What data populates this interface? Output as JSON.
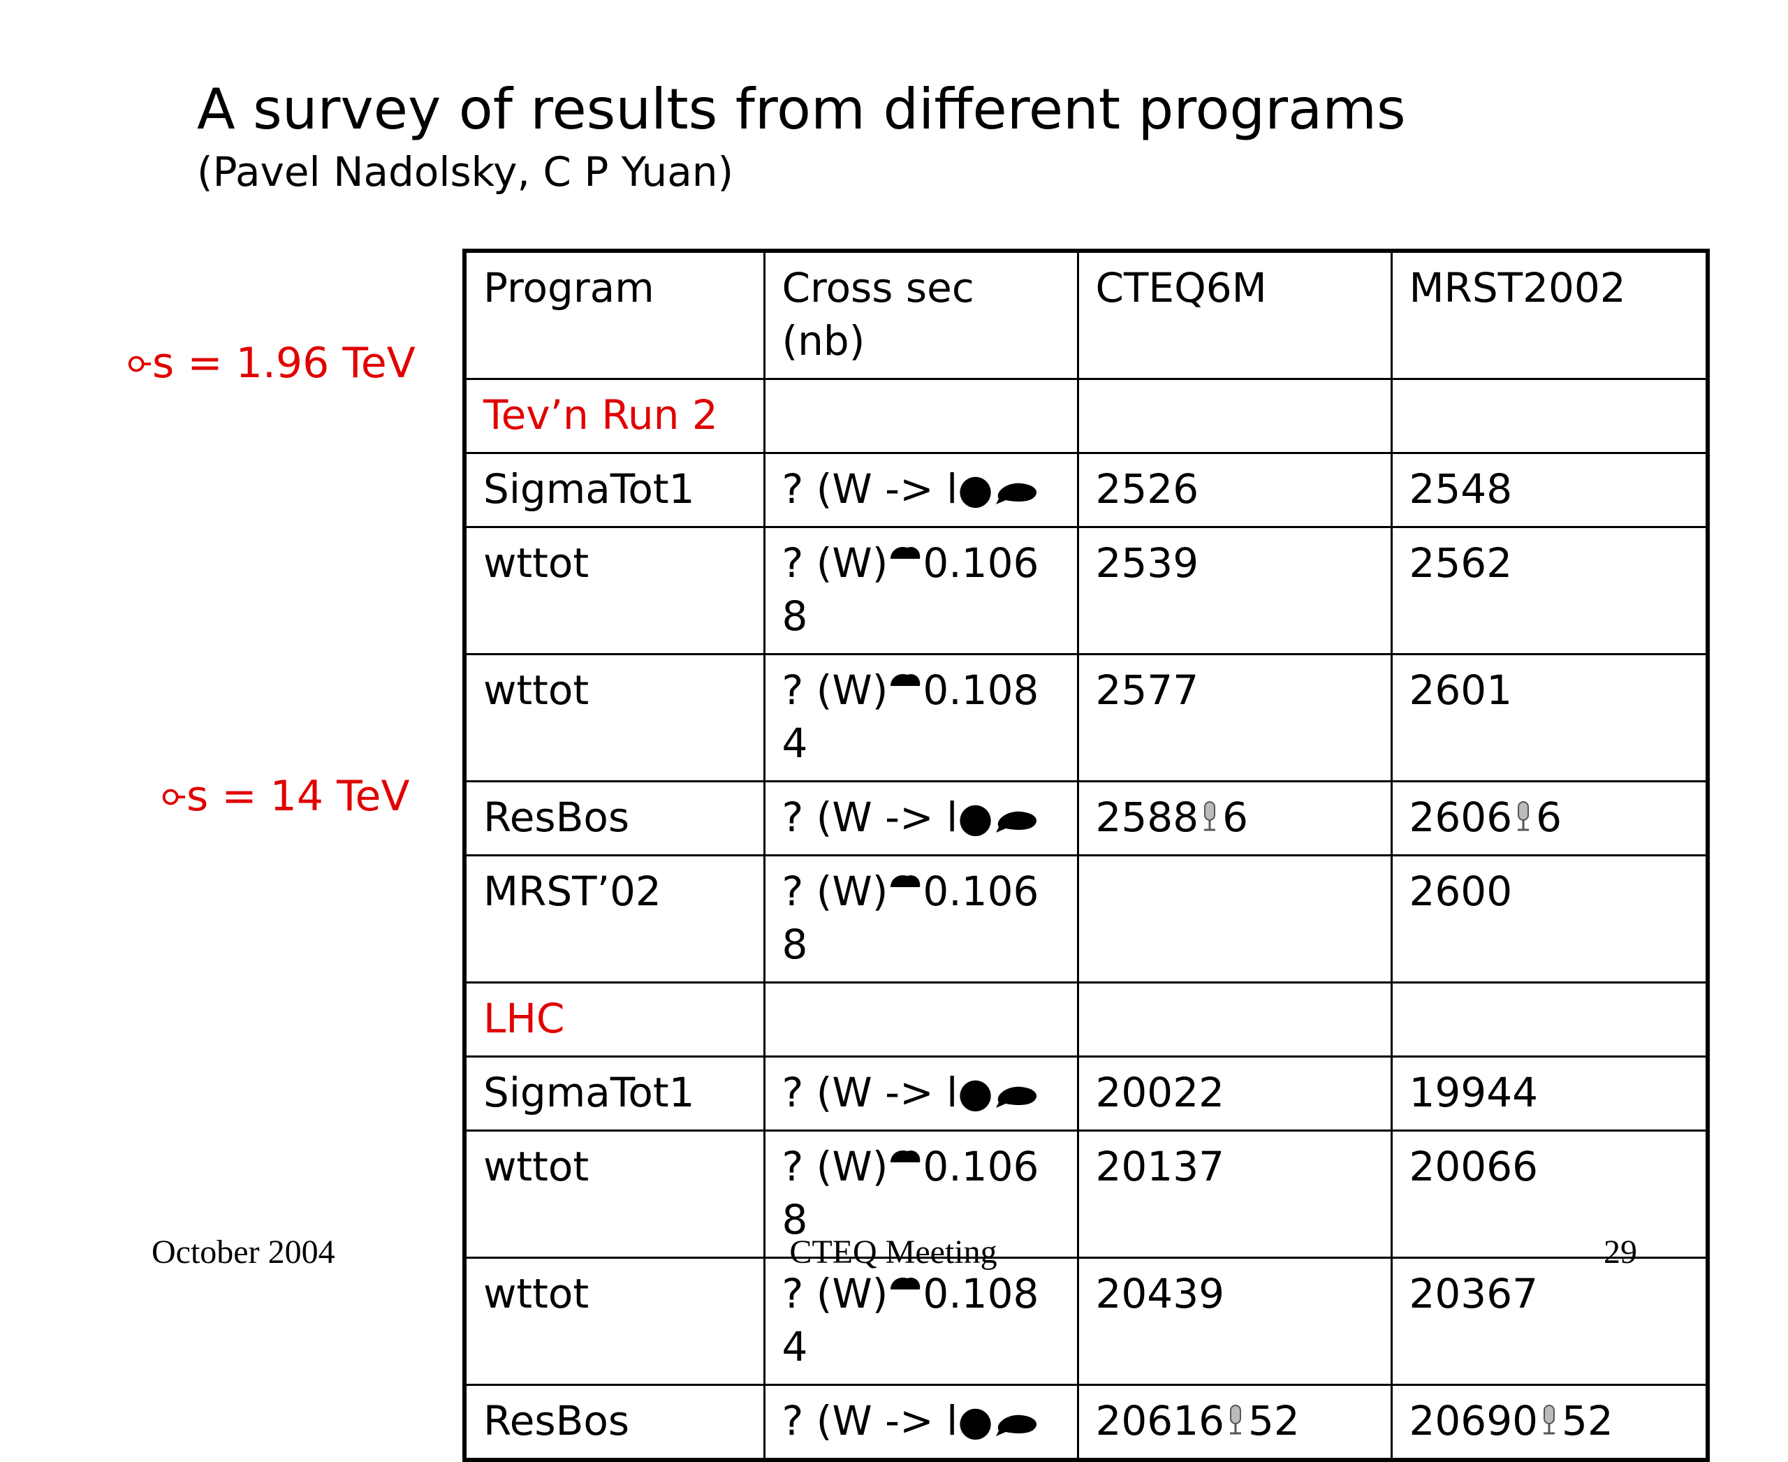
{
  "header": {
    "title": "A survey of results from different programs",
    "subtitle": "(Pavel Nadolsky, C P Yuan)"
  },
  "side_labels": [
    "s = 1.96 TeV",
    "s = 14 TeV"
  ],
  "table": {
    "header": [
      "Program",
      "Cross sec (nb)",
      "CTEQ6M",
      "MRST2002"
    ],
    "rows": [
      [
        "Tev’n Run 2",
        null,
        null,
        null
      ],
      [
        "SigmaTot1",
        "? (W -> l●",
        "2526",
        "2548"
      ],
      [
        "wttot",
        {
          "pre": "? (W)",
          "post": "0.1068"
        },
        "2539",
        "2562"
      ],
      [
        "wttot",
        {
          "pre": "? (W)",
          "post": "0.1084"
        },
        "2577",
        "2601"
      ],
      [
        "ResBos",
        "? (W -> l●",
        {
          "pre": "2588",
          "post": "6"
        },
        {
          "pre": "2606",
          "post": "6"
        }
      ],
      [
        "MRST’02",
        {
          "pre": "? (W)",
          "post": "0.1068"
        },
        null,
        "2600"
      ],
      [
        "LHC",
        null,
        null,
        null
      ],
      [
        "SigmaTot1",
        "? (W -> l●",
        "20022",
        "19944"
      ],
      [
        "wttot",
        {
          "pre": "? (W)",
          "post": "0.1068"
        },
        "20137",
        "20066"
      ],
      [
        "wttot",
        {
          "pre": "? (W)",
          "post": "0.1084"
        },
        "20439",
        "20367"
      ],
      [
        "ResBos",
        "? (W -> l●",
        {
          "pre": "20616",
          "post": "52"
        },
        {
          "pre": "20690",
          "post": "52"
        }
      ]
    ]
  },
  "footer": {
    "date": "October 2004",
    "event": "CTEQ Meeting",
    "page": "29"
  }
}
